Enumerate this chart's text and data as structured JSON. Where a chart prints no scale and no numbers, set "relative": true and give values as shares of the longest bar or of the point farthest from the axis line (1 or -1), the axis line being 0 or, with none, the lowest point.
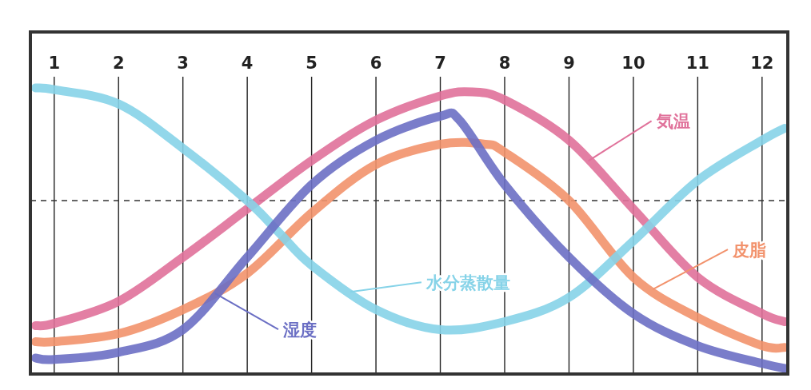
{
  "chart_data": {
    "type": "line",
    "relative": true,
    "xlim": [
      0.63,
      12.4
    ],
    "xticks": [
      1,
      2,
      3,
      4,
      5,
      6,
      7,
      8,
      9,
      10,
      11,
      12
    ],
    "grid": "x",
    "ref_lines": [
      {
        "axis": "y",
        "value": 0.606,
        "line_style": "dashed",
        "color": "#333333"
      }
    ],
    "series": [
      {
        "name": "水分蒸散量",
        "color": "#86d3e8",
        "x": [
          0.71,
          1,
          2,
          3,
          4,
          4.5,
          5,
          6,
          7,
          8,
          9,
          10,
          11,
          12,
          12.35
        ],
        "values": [
          1.0,
          0.994,
          0.944,
          0.789,
          0.606,
          0.493,
          0.38,
          0.225,
          0.155,
          0.183,
          0.268,
          0.465,
          0.676,
          0.817,
          0.859
        ]
      },
      {
        "name": "気温",
        "color": "#e0719a",
        "x": [
          0.71,
          1,
          2,
          3,
          4,
          5,
          6,
          7,
          7.5,
          8,
          9,
          10,
          11,
          12,
          12.35
        ],
        "values": [
          0.169,
          0.177,
          0.254,
          0.408,
          0.577,
          0.746,
          0.887,
          0.972,
          0.986,
          0.958,
          0.817,
          0.577,
          0.338,
          0.211,
          0.183
        ]
      },
      {
        "name": "皮脂",
        "color": "#f2926c",
        "x": [
          0.71,
          1,
          2,
          3,
          4,
          5,
          6,
          7,
          7.7,
          8,
          9,
          10,
          11,
          12,
          12.35
        ],
        "values": [
          0.113,
          0.113,
          0.141,
          0.225,
          0.352,
          0.563,
          0.732,
          0.803,
          0.803,
          0.775,
          0.606,
          0.338,
          0.197,
          0.099,
          0.093
        ]
      },
      {
        "name": "湿度",
        "color": "#6b6fc4",
        "x": [
          0.71,
          1,
          2,
          3,
          4,
          5,
          6,
          7,
          7.3,
          8,
          9,
          10,
          11,
          12,
          12.35
        ],
        "values": [
          0.056,
          0.051,
          0.076,
          0.155,
          0.408,
          0.662,
          0.817,
          0.901,
          0.887,
          0.662,
          0.408,
          0.211,
          0.099,
          0.037,
          0.02
        ]
      }
    ]
  }
}
